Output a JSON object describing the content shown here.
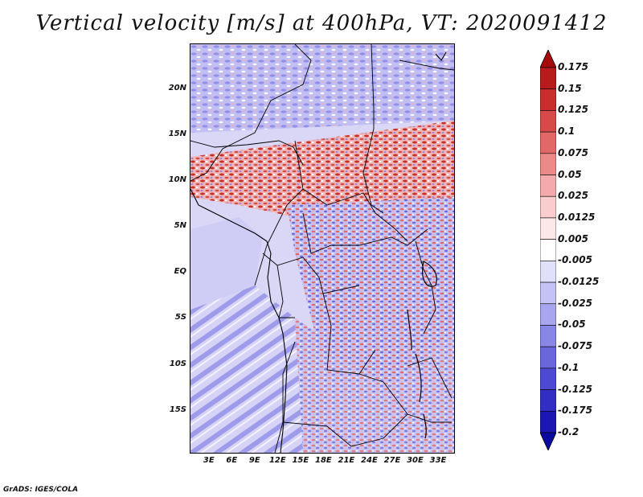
{
  "title": "Vertical velocity [m/s] at 400hPa, VT: 2020091412",
  "credit": "GrADS: IGES/COLA",
  "map": {
    "lat_labels": [
      "20N",
      "15N",
      "10N",
      "5N",
      "EQ",
      "5S",
      "10S",
      "15S"
    ],
    "lat_values": [
      20,
      15,
      10,
      5,
      0,
      -5,
      -10,
      -15
    ],
    "lon_labels": [
      "3E",
      "6E",
      "9E",
      "12E",
      "15E",
      "18E",
      "21E",
      "24E",
      "27E",
      "30E",
      "33E"
    ],
    "lon_values": [
      3,
      6,
      9,
      12,
      15,
      18,
      21,
      24,
      27,
      30,
      33
    ],
    "lon_range": [
      0.5,
      35
    ],
    "lat_range": [
      -19.5,
      25
    ]
  },
  "colorbar": {
    "labels": [
      "0.175",
      "0.15",
      "0.125",
      "0.1",
      "0.075",
      "0.05",
      "0.025",
      "0.0125",
      "0.005",
      "-0.005",
      "-0.0125",
      "-0.025",
      "-0.05",
      "-0.075",
      "-0.1",
      "-0.125",
      "-0.175",
      "-0.2"
    ],
    "colors": [
      "#a50a0a",
      "#b81b1b",
      "#c92d2d",
      "#d84a4a",
      "#e26868",
      "#ec8a8a",
      "#f4aaaa",
      "#f9cdcd",
      "#fde8e8",
      "#ffffff",
      "#e0e0fb",
      "#c4c3f6",
      "#a7a6ee",
      "#8987e6",
      "#6a67dd",
      "#4d49d2",
      "#322ec4",
      "#1c17b2",
      "#0a0aa0"
    ]
  },
  "colors": {
    "background_weak": "#dcd9f7",
    "positive": "#d84a4a",
    "negative": "#6a67dd",
    "boundary": "#000000"
  }
}
